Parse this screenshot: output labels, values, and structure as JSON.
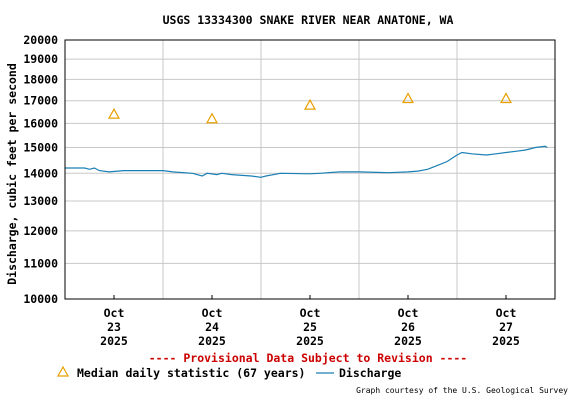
{
  "chart_data": {
    "type": "line",
    "title": "USGS 13334300 SNAKE RIVER NEAR ANATONE, WA",
    "xlabel": "",
    "ylabel": "Discharge, cubic feet per second",
    "yscale": "log",
    "ylim": [
      10000,
      20000
    ],
    "yticks": [
      10000,
      11000,
      12000,
      13000,
      14000,
      15000,
      16000,
      17000,
      18000,
      19000,
      20000
    ],
    "ytick_labels": [
      "10000",
      "11000",
      "12000",
      "13000",
      "14000",
      "15000",
      "16000",
      "17000",
      "18000",
      "19000",
      "20000"
    ],
    "xlim": [
      0,
      5
    ],
    "x_unit": "days since 2025-10-22 12:00",
    "xticks": [
      {
        "x": 0.5,
        "lines": [
          "Oct",
          "23",
          "2025"
        ]
      },
      {
        "x": 1.5,
        "lines": [
          "Oct",
          "24",
          "2025"
        ]
      },
      {
        "x": 2.5,
        "lines": [
          "Oct",
          "25",
          "2025"
        ]
      },
      {
        "x": 3.5,
        "lines": [
          "Oct",
          "26",
          "2025"
        ]
      },
      {
        "x": 4.5,
        "lines": [
          "Oct",
          "27",
          "2025"
        ]
      }
    ],
    "grid": true,
    "series": [
      {
        "name": "Discharge",
        "color": "#1a7fb4",
        "style": "line",
        "points": [
          [
            0.0,
            14200
          ],
          [
            0.2,
            14200
          ],
          [
            0.25,
            14150
          ],
          [
            0.3,
            14200
          ],
          [
            0.35,
            14100
          ],
          [
            0.45,
            14050
          ],
          [
            0.6,
            14100
          ],
          [
            0.8,
            14100
          ],
          [
            1.0,
            14100
          ],
          [
            1.1,
            14050
          ],
          [
            1.3,
            14000
          ],
          [
            1.4,
            13900
          ],
          [
            1.45,
            14000
          ],
          [
            1.55,
            13950
          ],
          [
            1.6,
            14000
          ],
          [
            1.7,
            13950
          ],
          [
            1.9,
            13900
          ],
          [
            2.0,
            13850
          ],
          [
            2.05,
            13900
          ],
          [
            2.2,
            14000
          ],
          [
            2.5,
            13980
          ],
          [
            2.6,
            14000
          ],
          [
            2.8,
            14050
          ],
          [
            3.0,
            14050
          ],
          [
            3.3,
            14020
          ],
          [
            3.5,
            14050
          ],
          [
            3.6,
            14080
          ],
          [
            3.7,
            14150
          ],
          [
            3.8,
            14300
          ],
          [
            3.9,
            14450
          ],
          [
            4.0,
            14700
          ],
          [
            4.05,
            14800
          ],
          [
            4.15,
            14750
          ],
          [
            4.3,
            14700
          ],
          [
            4.4,
            14750
          ],
          [
            4.5,
            14800
          ],
          [
            4.6,
            14850
          ],
          [
            4.7,
            14900
          ],
          [
            4.8,
            15000
          ],
          [
            4.9,
            15050
          ],
          [
            4.92,
            15000
          ]
        ]
      },
      {
        "name": "Median daily statistic (67 years)",
        "color": "#e8a000",
        "style": "triangle",
        "points": [
          [
            0.5,
            16400
          ],
          [
            1.5,
            16200
          ],
          [
            2.5,
            16800
          ],
          [
            3.5,
            17100
          ],
          [
            4.5,
            17100
          ]
        ]
      }
    ],
    "annotations": {
      "provisional": "---- Provisional Data Subject to Revision ----",
      "credit": "Graph courtesy of the U.S. Geological Survey"
    },
    "legend": [
      {
        "label": "Median daily statistic (67 years)",
        "marker": "triangle"
      },
      {
        "label": "Discharge",
        "marker": "line"
      }
    ],
    "colors": {
      "provisional": "#cc0000",
      "grid": "#c8c8c8",
      "frame": "#000000",
      "text": "#000000"
    }
  }
}
